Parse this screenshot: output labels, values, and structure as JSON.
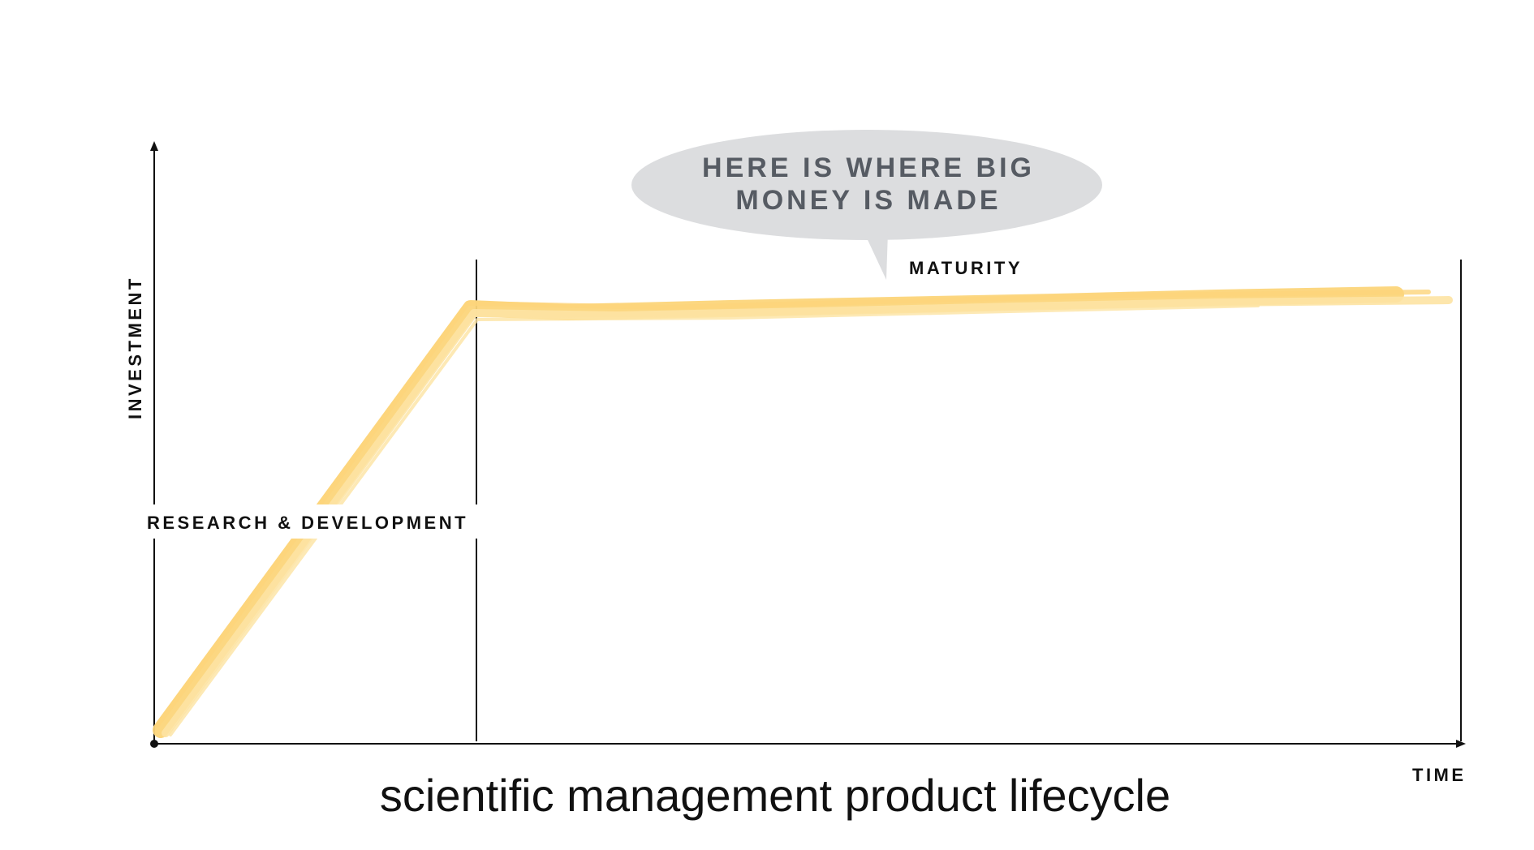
{
  "diagram": {
    "y_axis_label": "INVESTMENT",
    "x_axis_label": "TIME",
    "phase_1_label": "RESEARCH & DEVELOPMENT",
    "phase_2_label": "MATURITY",
    "callout_line_1": "HERE IS WHERE BIG",
    "callout_line_2": "MONEY IS MADE",
    "caption": "scientific management product lifecycle"
  },
  "colors": {
    "curve": "#fcd57a",
    "callout_bubble": "#dcdddf",
    "callout_text": "#565b63",
    "axes": "#111111"
  }
}
